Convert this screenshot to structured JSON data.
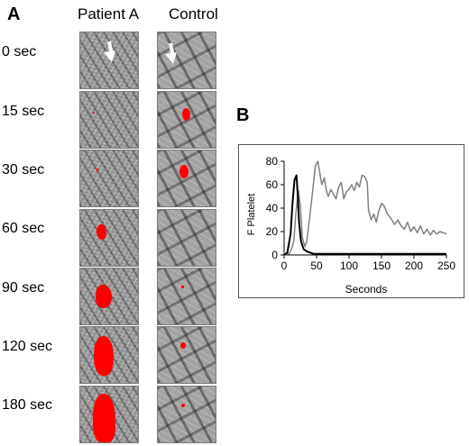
{
  "panel_a": {
    "letter": "A",
    "column_headers": [
      "Patient A",
      "Control"
    ],
    "time_labels": [
      "0 sec",
      "15 sec",
      "30 sec",
      "60 sec",
      "90 sec",
      "120 sec",
      "180 sec"
    ]
  },
  "panel_b": {
    "letter": "B"
  },
  "colors": {
    "thrombus": "#ff0000",
    "patient_line": "#000000",
    "control_line": "#808080"
  },
  "chart_data": {
    "type": "line",
    "xlabel": "Seconds",
    "ylabel": "F Platelet",
    "xlim": [
      0,
      250
    ],
    "ylim": [
      0,
      80
    ],
    "xticks": [
      0,
      50,
      100,
      150,
      200,
      250
    ],
    "yticks": [
      0,
      20,
      40,
      60,
      80
    ],
    "grid": false,
    "series": [
      {
        "color": "#000000",
        "x": [
          0,
          5,
          10,
          13,
          16,
          19,
          21,
          23,
          26,
          30,
          35,
          45,
          60,
          100,
          150,
          200,
          250
        ],
        "y": [
          0,
          2,
          18,
          45,
          64,
          68,
          52,
          28,
          12,
          5,
          3,
          1,
          1,
          1,
          1,
          1,
          1
        ]
      },
      {
        "color": "#808080",
        "x": [
          0,
          8,
          12,
          15,
          18,
          22,
          25,
          28,
          32,
          35,
          40,
          44,
          48,
          52,
          55,
          58,
          62,
          65,
          68,
          72,
          76,
          80,
          84,
          88,
          92,
          96,
          100,
          104,
          108,
          112,
          116,
          120,
          124,
          128,
          130,
          134,
          138,
          142,
          146,
          150,
          154,
          158,
          162,
          166,
          170,
          175,
          180,
          185,
          190,
          195,
          200,
          205,
          210,
          215,
          220,
          225,
          230,
          235,
          240,
          245,
          250
        ],
        "y": [
          0,
          1,
          6,
          12,
          35,
          55,
          42,
          15,
          7,
          12,
          35,
          55,
          76,
          80,
          70,
          60,
          66,
          55,
          50,
          56,
          52,
          48,
          58,
          62,
          48,
          54,
          56,
          60,
          55,
          62,
          58,
          68,
          67,
          62,
          38,
          30,
          35,
          28,
          38,
          44,
          42,
          36,
          33,
          30,
          26,
          30,
          25,
          22,
          28,
          20,
          24,
          19,
          25,
          18,
          22,
          17,
          21,
          18,
          20,
          19,
          18
        ]
      }
    ]
  }
}
